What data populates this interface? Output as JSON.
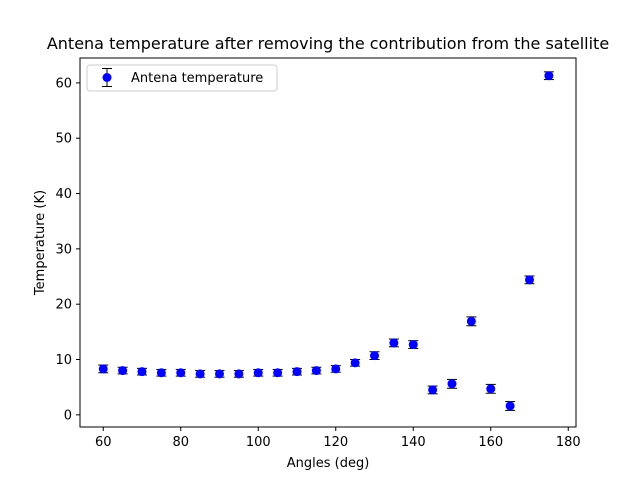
{
  "chart_data": {
    "type": "scatter",
    "title": "Antena temperature after removing the contribution from the satellite",
    "xlabel": "Angles (deg)",
    "ylabel": "Temperature (K)",
    "xlim": [
      54,
      182
    ],
    "ylim": [
      -2.2,
      64.5
    ],
    "xticks": [
      60,
      80,
      100,
      120,
      140,
      160,
      180
    ],
    "yticks": [
      0,
      10,
      20,
      30,
      40,
      50,
      60
    ],
    "grid": false,
    "legend_position": "top-left",
    "series": [
      {
        "name": "Antena temperature",
        "color": "#0000ff",
        "errorbar_color": "#000000",
        "x": [
          60,
          65,
          70,
          75,
          80,
          85,
          90,
          95,
          100,
          105,
          110,
          115,
          120,
          125,
          130,
          135,
          140,
          145,
          150,
          155,
          160,
          165,
          170,
          175
        ],
        "y": [
          8.3,
          8.0,
          7.8,
          7.6,
          7.6,
          7.4,
          7.4,
          7.4,
          7.6,
          7.6,
          7.8,
          8.0,
          8.3,
          9.4,
          10.7,
          13.0,
          12.7,
          4.5,
          5.6,
          16.9,
          4.7,
          1.6,
          24.4,
          61.3
        ],
        "yerr": [
          0.7,
          0.6,
          0.6,
          0.6,
          0.6,
          0.6,
          0.6,
          0.6,
          0.6,
          0.6,
          0.6,
          0.6,
          0.6,
          0.6,
          0.7,
          0.7,
          0.7,
          0.7,
          0.8,
          0.8,
          0.8,
          0.8,
          0.7,
          0.7
        ]
      }
    ]
  }
}
